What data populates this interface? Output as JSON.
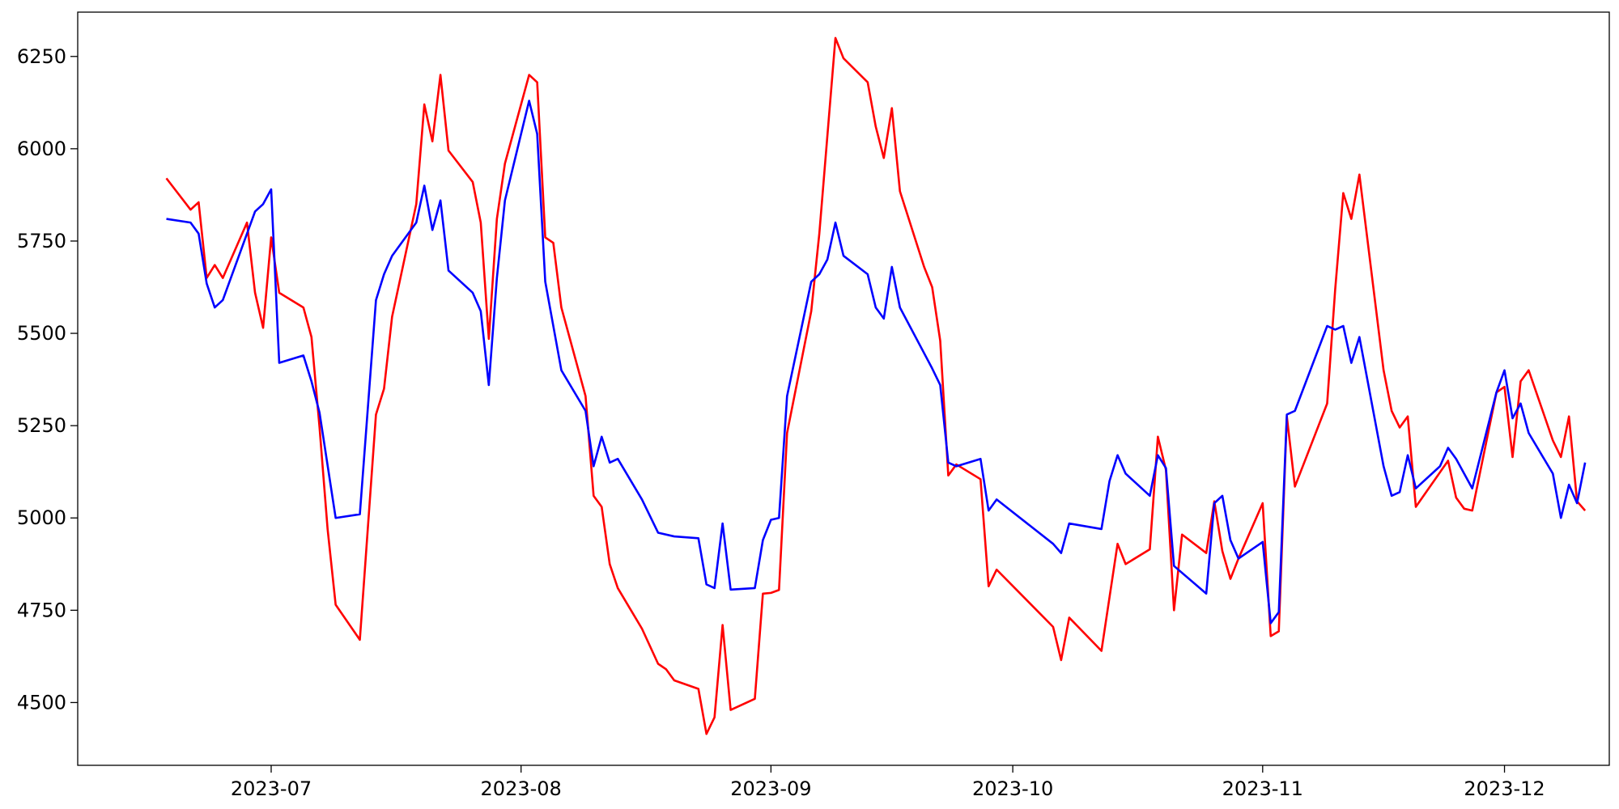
{
  "chart_data": {
    "type": "line",
    "title": "",
    "xlabel": "",
    "ylabel": "",
    "x_axis_type": "date",
    "xlim": [
      "2023-06-07",
      "2023-12-14"
    ],
    "ylim": [
      4330,
      6370
    ],
    "grid": false,
    "legend": "none",
    "x_tick_labels": [
      "2023-07",
      "2023-08",
      "2023-09",
      "2023-10",
      "2023-11",
      "2023-12"
    ],
    "x_tick_dates": [
      "2023-07-01",
      "2023-08-01",
      "2023-09-01",
      "2023-10-01",
      "2023-11-01",
      "2023-12-01"
    ],
    "y_ticks": [
      4500,
      4750,
      5000,
      5250,
      5500,
      5750,
      6000,
      6250
    ],
    "y_tick_labels": [
      "4500",
      "4750",
      "5000",
      "5250",
      "5500",
      "5750",
      "6000",
      "6250"
    ],
    "series": [
      {
        "color": "#ff0000",
        "points": [
          [
            "2023-06-18",
            5920
          ],
          [
            "2023-06-21",
            5835
          ],
          [
            "2023-06-22",
            5855
          ],
          [
            "2023-06-23",
            5650
          ],
          [
            "2023-06-24",
            5685
          ],
          [
            "2023-06-25",
            5650
          ],
          [
            "2023-06-28",
            5800
          ],
          [
            "2023-06-29",
            5610
          ],
          [
            "2023-06-30",
            5515
          ],
          [
            "2023-07-01",
            5760
          ],
          [
            "2023-07-02",
            5610
          ],
          [
            "2023-07-05",
            5570
          ],
          [
            "2023-07-06",
            5490
          ],
          [
            "2023-07-07",
            5245
          ],
          [
            "2023-07-08",
            4970
          ],
          [
            "2023-07-09",
            4765
          ],
          [
            "2023-07-12",
            4670
          ],
          [
            "2023-07-14",
            5280
          ],
          [
            "2023-07-15",
            5350
          ],
          [
            "2023-07-16",
            5545
          ],
          [
            "2023-07-19",
            5850
          ],
          [
            "2023-07-20",
            6120
          ],
          [
            "2023-07-21",
            6020
          ],
          [
            "2023-07-22",
            6200
          ],
          [
            "2023-07-23",
            5995
          ],
          [
            "2023-07-26",
            5910
          ],
          [
            "2023-07-27",
            5800
          ],
          [
            "2023-07-28",
            5485
          ],
          [
            "2023-07-29",
            5810
          ],
          [
            "2023-07-30",
            5960
          ],
          [
            "2023-08-02",
            6200
          ],
          [
            "2023-08-03",
            6180
          ],
          [
            "2023-08-04",
            5760
          ],
          [
            "2023-08-05",
            5745
          ],
          [
            "2023-08-06",
            5570
          ],
          [
            "2023-08-09",
            5330
          ],
          [
            "2023-08-10",
            5060
          ],
          [
            "2023-08-11",
            5030
          ],
          [
            "2023-08-12",
            4875
          ],
          [
            "2023-08-13",
            4810
          ],
          [
            "2023-08-16",
            4700
          ],
          [
            "2023-08-18",
            4605
          ],
          [
            "2023-08-19",
            4590
          ],
          [
            "2023-08-20",
            4560
          ],
          [
            "2023-08-23",
            4537
          ],
          [
            "2023-08-24",
            4415
          ],
          [
            "2023-08-25",
            4460
          ],
          [
            "2023-08-26",
            4710
          ],
          [
            "2023-08-27",
            4480
          ],
          [
            "2023-08-30",
            4510
          ],
          [
            "2023-08-31",
            4795
          ],
          [
            "2023-09-01",
            4797
          ],
          [
            "2023-09-02",
            4805
          ],
          [
            "2023-09-03",
            5230
          ],
          [
            "2023-09-06",
            5560
          ],
          [
            "2023-09-07",
            5770
          ],
          [
            "2023-09-09",
            6300
          ],
          [
            "2023-09-10",
            6245
          ],
          [
            "2023-09-13",
            6180
          ],
          [
            "2023-09-14",
            6060
          ],
          [
            "2023-09-15",
            5975
          ],
          [
            "2023-09-16",
            6110
          ],
          [
            "2023-09-17",
            5885
          ],
          [
            "2023-09-20",
            5680
          ],
          [
            "2023-09-21",
            5625
          ],
          [
            "2023-09-22",
            5480
          ],
          [
            "2023-09-23",
            5115
          ],
          [
            "2023-09-24",
            5145
          ],
          [
            "2023-09-27",
            5105
          ],
          [
            "2023-09-28",
            4815
          ],
          [
            "2023-09-29",
            4860
          ],
          [
            "2023-10-06",
            4705
          ],
          [
            "2023-10-07",
            4615
          ],
          [
            "2023-10-08",
            4730
          ],
          [
            "2023-10-12",
            4640
          ],
          [
            "2023-10-14",
            4930
          ],
          [
            "2023-10-15",
            4875
          ],
          [
            "2023-10-18",
            4915
          ],
          [
            "2023-10-19",
            5220
          ],
          [
            "2023-10-20",
            5130
          ],
          [
            "2023-10-21",
            4750
          ],
          [
            "2023-10-22",
            4955
          ],
          [
            "2023-10-25",
            4905
          ],
          [
            "2023-10-26",
            5045
          ],
          [
            "2023-10-27",
            4910
          ],
          [
            "2023-10-28",
            4835
          ],
          [
            "2023-10-29",
            4890
          ],
          [
            "2023-11-01",
            5040
          ],
          [
            "2023-11-02",
            4680
          ],
          [
            "2023-11-03",
            4693
          ],
          [
            "2023-11-04",
            5275
          ],
          [
            "2023-11-05",
            5085
          ],
          [
            "2023-11-09",
            5310
          ],
          [
            "2023-11-10",
            5620
          ],
          [
            "2023-11-11",
            5880
          ],
          [
            "2023-11-12",
            5810
          ],
          [
            "2023-11-13",
            5930
          ],
          [
            "2023-11-16",
            5400
          ],
          [
            "2023-11-17",
            5290
          ],
          [
            "2023-11-18",
            5245
          ],
          [
            "2023-11-19",
            5275
          ],
          [
            "2023-11-20",
            5030
          ],
          [
            "2023-11-24",
            5155
          ],
          [
            "2023-11-25",
            5055
          ],
          [
            "2023-11-26",
            5025
          ],
          [
            "2023-11-27",
            5020
          ],
          [
            "2023-11-30",
            5340
          ],
          [
            "2023-12-01",
            5355
          ],
          [
            "2023-12-02",
            5165
          ],
          [
            "2023-12-03",
            5370
          ],
          [
            "2023-12-04",
            5400
          ],
          [
            "2023-12-07",
            5210
          ],
          [
            "2023-12-08",
            5165
          ],
          [
            "2023-12-09",
            5275
          ],
          [
            "2023-12-10",
            5045
          ],
          [
            "2023-12-11",
            5020
          ]
        ]
      },
      {
        "color": "#0000ff",
        "points": [
          [
            "2023-06-18",
            5810
          ],
          [
            "2023-06-21",
            5800
          ],
          [
            "2023-06-22",
            5770
          ],
          [
            "2023-06-23",
            5635
          ],
          [
            "2023-06-24",
            5570
          ],
          [
            "2023-06-25",
            5590
          ],
          [
            "2023-06-28",
            5770
          ],
          [
            "2023-06-29",
            5830
          ],
          [
            "2023-06-30",
            5850
          ],
          [
            "2023-07-01",
            5890
          ],
          [
            "2023-07-02",
            5420
          ],
          [
            "2023-07-05",
            5440
          ],
          [
            "2023-07-06",
            5370
          ],
          [
            "2023-07-07",
            5285
          ],
          [
            "2023-07-09",
            5000
          ],
          [
            "2023-07-12",
            5010
          ],
          [
            "2023-07-14",
            5590
          ],
          [
            "2023-07-15",
            5660
          ],
          [
            "2023-07-16",
            5710
          ],
          [
            "2023-07-19",
            5800
          ],
          [
            "2023-07-20",
            5900
          ],
          [
            "2023-07-21",
            5780
          ],
          [
            "2023-07-22",
            5860
          ],
          [
            "2023-07-23",
            5670
          ],
          [
            "2023-07-26",
            5610
          ],
          [
            "2023-07-27",
            5560
          ],
          [
            "2023-07-28",
            5360
          ],
          [
            "2023-07-29",
            5650
          ],
          [
            "2023-07-30",
            5860
          ],
          [
            "2023-08-02",
            6130
          ],
          [
            "2023-08-03",
            6040
          ],
          [
            "2023-08-04",
            5640
          ],
          [
            "2023-08-06",
            5400
          ],
          [
            "2023-08-09",
            5290
          ],
          [
            "2023-08-10",
            5140
          ],
          [
            "2023-08-11",
            5220
          ],
          [
            "2023-08-12",
            5150
          ],
          [
            "2023-08-13",
            5160
          ],
          [
            "2023-08-16",
            5050
          ],
          [
            "2023-08-18",
            4960
          ],
          [
            "2023-08-20",
            4950
          ],
          [
            "2023-08-23",
            4945
          ],
          [
            "2023-08-24",
            4820
          ],
          [
            "2023-08-25",
            4810
          ],
          [
            "2023-08-26",
            4985
          ],
          [
            "2023-08-27",
            4806
          ],
          [
            "2023-08-30",
            4810
          ],
          [
            "2023-08-31",
            4940
          ],
          [
            "2023-09-01",
            4995
          ],
          [
            "2023-09-02",
            5000
          ],
          [
            "2023-09-03",
            5330
          ],
          [
            "2023-09-06",
            5640
          ],
          [
            "2023-09-07",
            5660
          ],
          [
            "2023-09-08",
            5700
          ],
          [
            "2023-09-09",
            5800
          ],
          [
            "2023-09-10",
            5710
          ],
          [
            "2023-09-13",
            5660
          ],
          [
            "2023-09-14",
            5570
          ],
          [
            "2023-09-15",
            5540
          ],
          [
            "2023-09-16",
            5680
          ],
          [
            "2023-09-17",
            5570
          ],
          [
            "2023-09-21",
            5405
          ],
          [
            "2023-09-22",
            5360
          ],
          [
            "2023-09-23",
            5150
          ],
          [
            "2023-09-24",
            5140
          ],
          [
            "2023-09-27",
            5160
          ],
          [
            "2023-09-28",
            5020
          ],
          [
            "2023-09-29",
            5050
          ],
          [
            "2023-10-06",
            4930
          ],
          [
            "2023-10-07",
            4905
          ],
          [
            "2023-10-08",
            4985
          ],
          [
            "2023-10-12",
            4970
          ],
          [
            "2023-10-13",
            5100
          ],
          [
            "2023-10-14",
            5170
          ],
          [
            "2023-10-15",
            5120
          ],
          [
            "2023-10-18",
            5060
          ],
          [
            "2023-10-19",
            5170
          ],
          [
            "2023-10-20",
            5135
          ],
          [
            "2023-10-21",
            4870
          ],
          [
            "2023-10-25",
            4795
          ],
          [
            "2023-10-26",
            5040
          ],
          [
            "2023-10-27",
            5060
          ],
          [
            "2023-10-28",
            4940
          ],
          [
            "2023-10-29",
            4890
          ],
          [
            "2023-11-01",
            4935
          ],
          [
            "2023-11-02",
            4715
          ],
          [
            "2023-11-03",
            4745
          ],
          [
            "2023-11-04",
            5280
          ],
          [
            "2023-11-05",
            5290
          ],
          [
            "2023-11-09",
            5520
          ],
          [
            "2023-11-10",
            5510
          ],
          [
            "2023-11-11",
            5520
          ],
          [
            "2023-11-12",
            5420
          ],
          [
            "2023-11-13",
            5490
          ],
          [
            "2023-11-16",
            5140
          ],
          [
            "2023-11-17",
            5060
          ],
          [
            "2023-11-18",
            5070
          ],
          [
            "2023-11-19",
            5170
          ],
          [
            "2023-11-20",
            5080
          ],
          [
            "2023-11-23",
            5140
          ],
          [
            "2023-11-24",
            5190
          ],
          [
            "2023-11-25",
            5160
          ],
          [
            "2023-11-27",
            5080
          ],
          [
            "2023-11-30",
            5340
          ],
          [
            "2023-12-01",
            5400
          ],
          [
            "2023-12-02",
            5270
          ],
          [
            "2023-12-03",
            5310
          ],
          [
            "2023-12-04",
            5230
          ],
          [
            "2023-12-07",
            5120
          ],
          [
            "2023-12-08",
            5000
          ],
          [
            "2023-12-09",
            5090
          ],
          [
            "2023-12-10",
            5040
          ],
          [
            "2023-12-11",
            5150
          ]
        ]
      }
    ]
  }
}
